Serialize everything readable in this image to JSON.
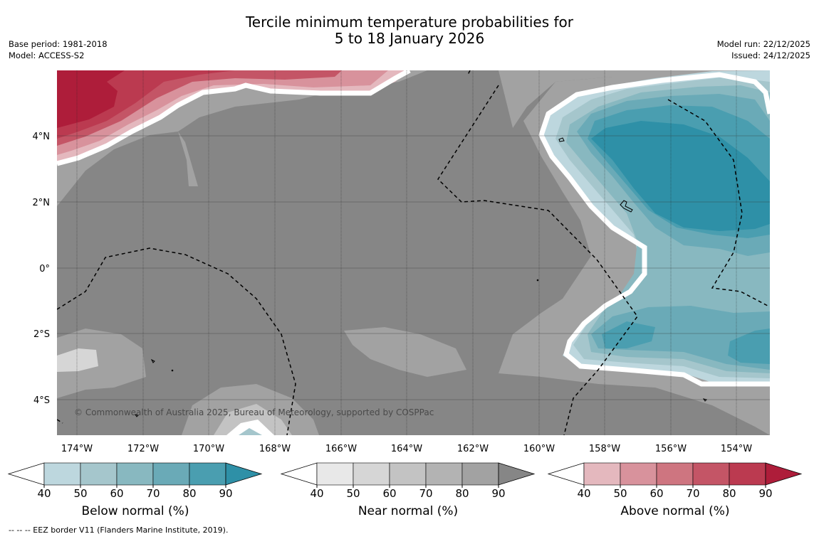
{
  "title": {
    "line1": "Tercile minimum temperature probabilities for",
    "line2": "5 to 18 January 2026"
  },
  "meta": {
    "base_period": "Base period: 1981-2018",
    "model": "Model: ACCESS-S2",
    "model_run": "Model run: 22/12/2025",
    "issued": "Issued: 24/12/2025"
  },
  "map": {
    "lon_ticks": [
      "174°W",
      "172°W",
      "170°W",
      "168°W",
      "166°W",
      "164°W",
      "162°W",
      "160°W",
      "158°W",
      "156°W",
      "154°W"
    ],
    "lat_ticks": [
      "4°N",
      "2°N",
      "0°",
      "2°S",
      "4°S"
    ],
    "copyright": "© Commonwealth of Australia 2025, Bureau of Meteorology, supported by COSPPac"
  },
  "colorbars": [
    {
      "name": "below",
      "label": "Below normal (%)",
      "ticks": [
        "40",
        "50",
        "60",
        "70",
        "80",
        "90"
      ],
      "colors": [
        "#ffffff",
        "#bdd7de",
        "#a5c6cc",
        "#88b8c0",
        "#6aaab7",
        "#4a9eb0",
        "#2e90a7"
      ]
    },
    {
      "name": "near",
      "label": "Near normal (%)",
      "ticks": [
        "40",
        "50",
        "60",
        "70",
        "80",
        "90"
      ],
      "colors": [
        "#ffffff",
        "#e8e8e8",
        "#d6d6d6",
        "#c3c3c3",
        "#b3b3b3",
        "#a2a2a2",
        "#868686"
      ]
    },
    {
      "name": "above",
      "label": "Above normal (%)",
      "ticks": [
        "40",
        "50",
        "60",
        "70",
        "80",
        "90"
      ],
      "colors": [
        "#ffffff",
        "#e4b8be",
        "#d8929c",
        "#ce7580",
        "#c45566",
        "#bb3a50",
        "#ae1d3a"
      ]
    }
  ],
  "footnote": "--  --  -- EEZ border V11 (Flanders Marine Institute, 2019)."
}
